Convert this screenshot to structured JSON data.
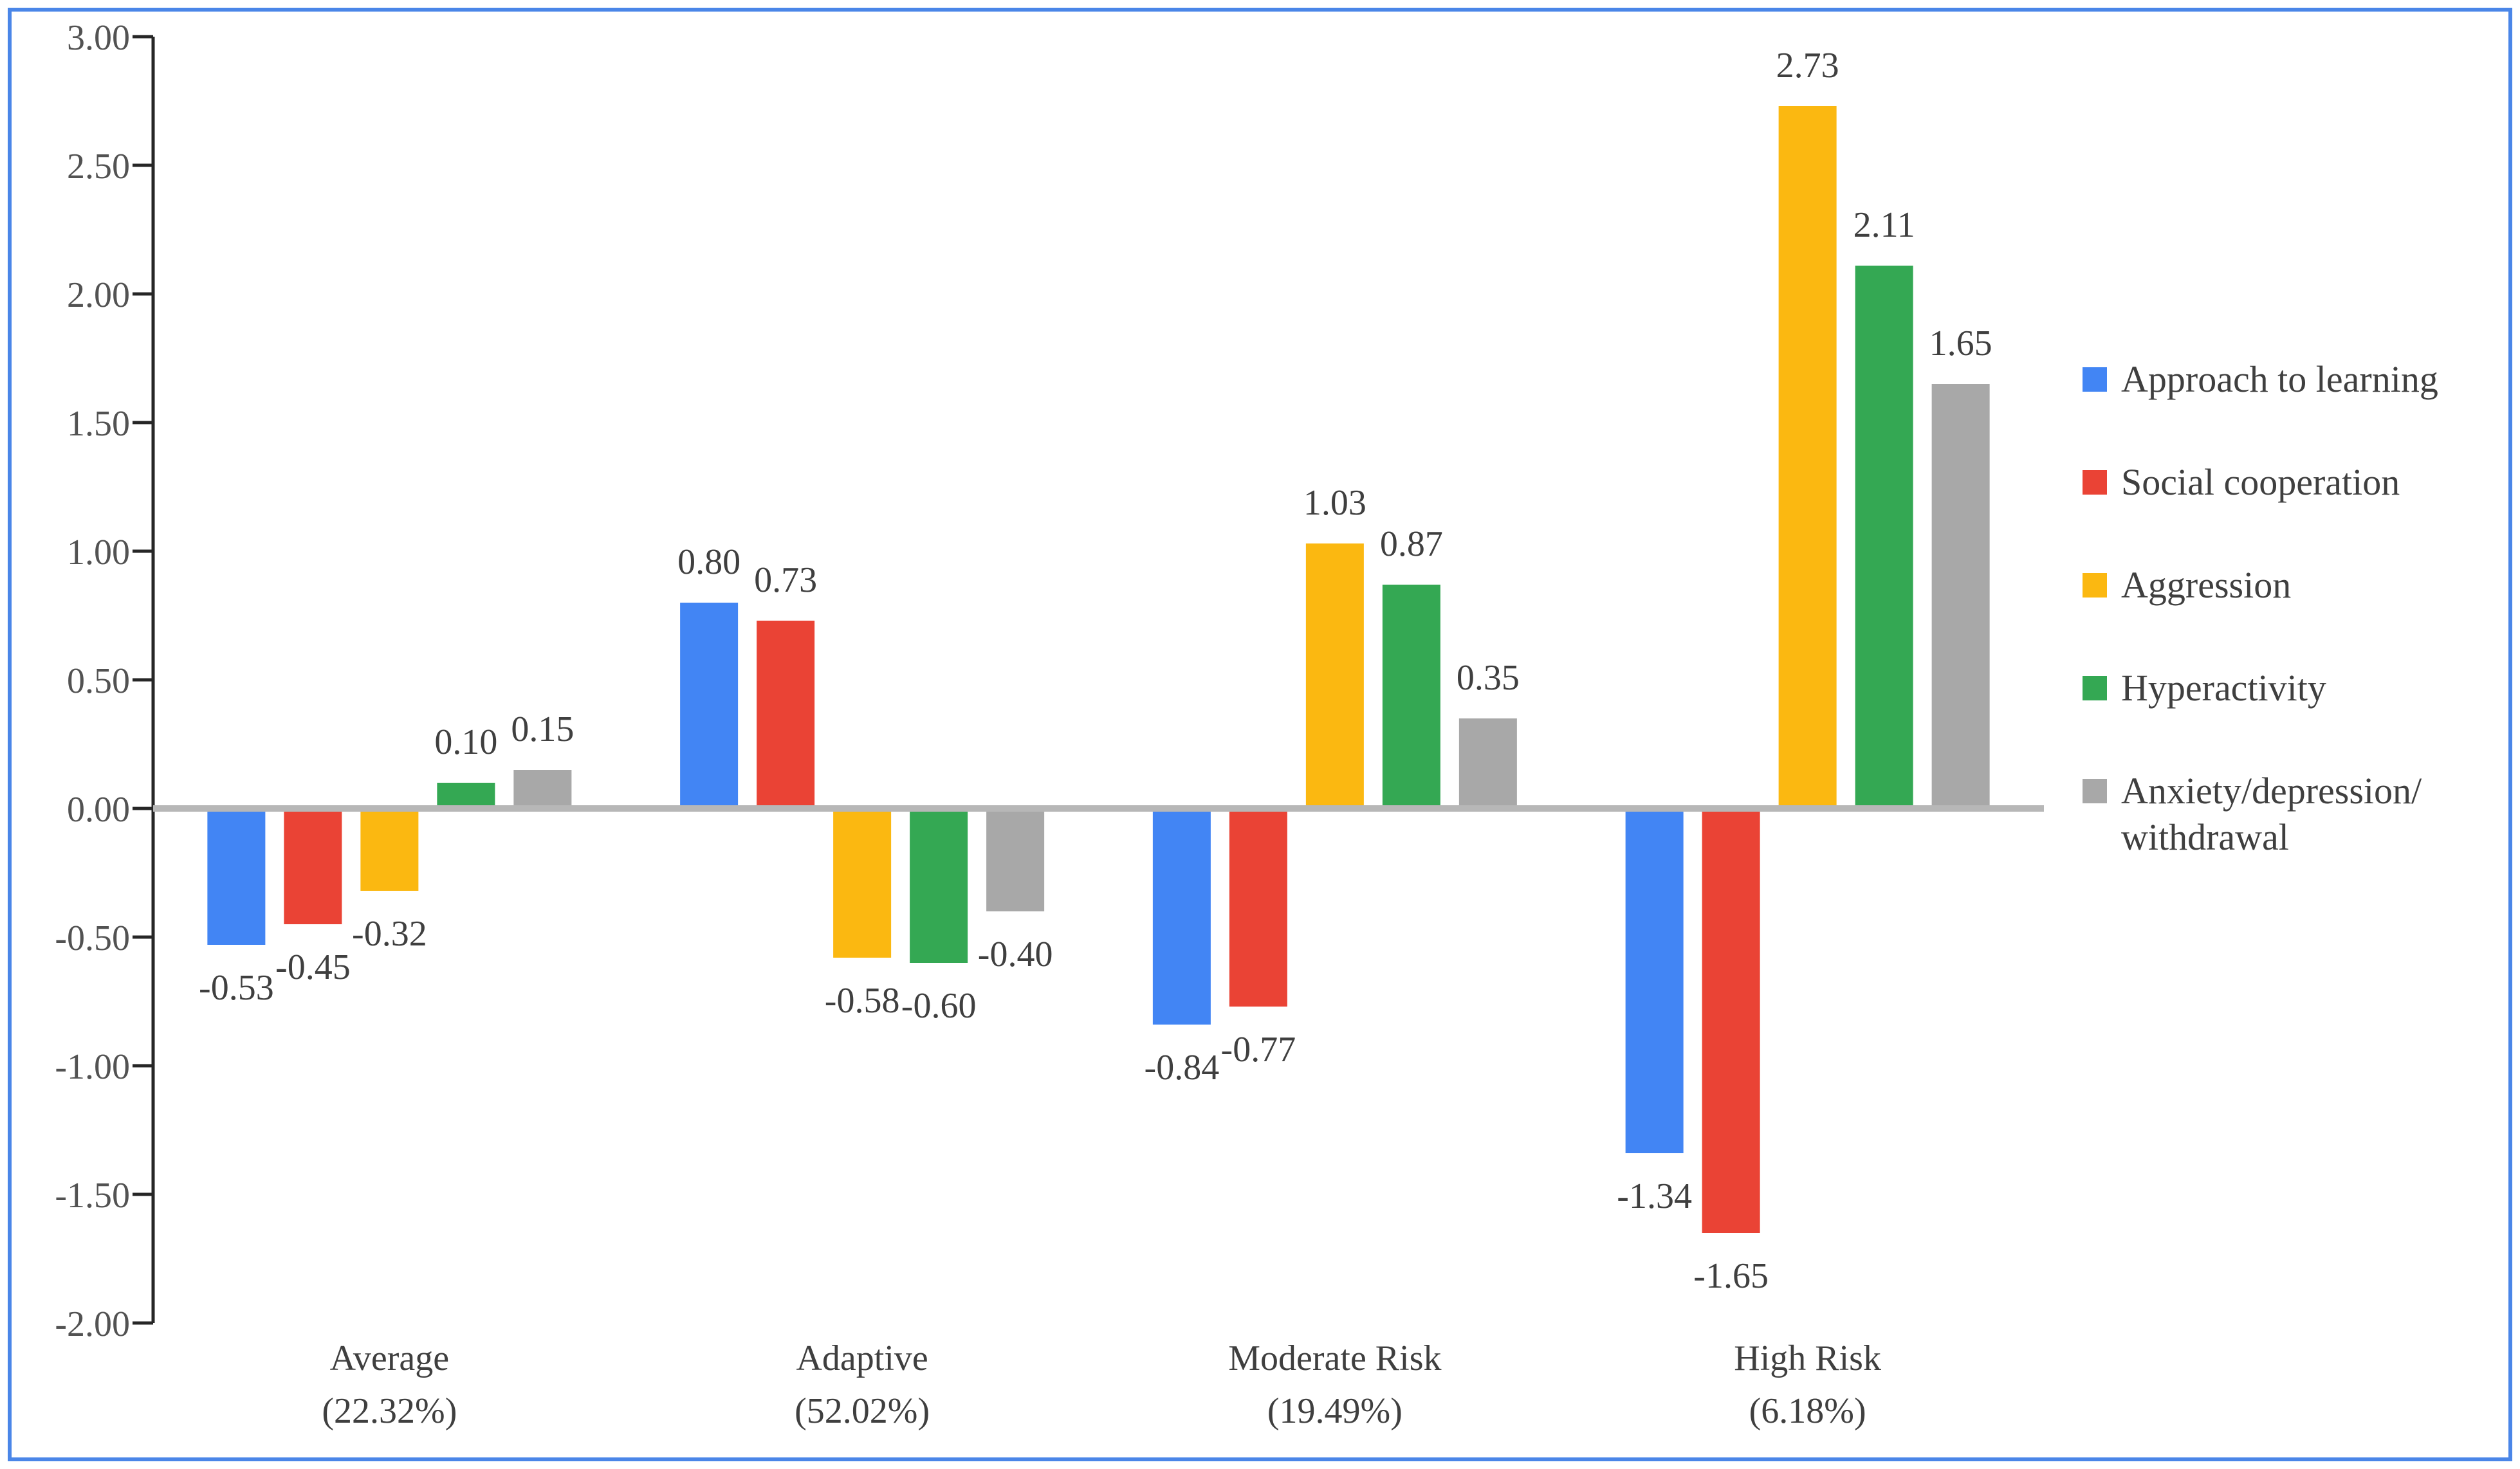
{
  "figure": {
    "background": "#FFFFFF",
    "border_color": "#4A86E8"
  },
  "chart_data": {
    "type": "bar",
    "title": "",
    "xlabel": "",
    "ylabel": "",
    "categories": [
      "Average",
      "Adaptive",
      "Moderate Risk",
      "High Risk"
    ],
    "category_percentages": [
      "(22.32%)",
      "(52.02%)",
      "(19.49%)",
      "(6.18%)"
    ],
    "series": [
      {
        "name": "Approach to learning",
        "color": "#4285F4",
        "values": [
          -0.53,
          0.8,
          -0.84,
          -1.34
        ]
      },
      {
        "name": "Social cooperation",
        "color": "#EA4335",
        "values": [
          -0.45,
          0.73,
          -0.77,
          -1.65
        ]
      },
      {
        "name": "Aggression",
        "color": "#FBB811",
        "values": [
          -0.32,
          -0.58,
          1.03,
          2.73
        ]
      },
      {
        "name": "Hyperactivity",
        "color": "#34A853",
        "values": [
          0.1,
          -0.6,
          0.87,
          2.11
        ]
      },
      {
        "name": "Anxiety/depression/withdrawal",
        "color": "#A8A8A8",
        "values": [
          0.15,
          -0.4,
          0.35,
          1.65
        ]
      }
    ],
    "ylim": [
      -2.0,
      3.0
    ],
    "ytick_step": 0.5,
    "yticks": [
      "3.00",
      "2.50",
      "2.00",
      "1.50",
      "1.00",
      "0.50",
      "0.00",
      "-0.50",
      "-1.00",
      "-1.50",
      "-2.00"
    ],
    "data_labels_visible": true,
    "data_label_decimals": 2,
    "grid": "zero-line-only",
    "legend_position": "right",
    "colors": {
      "axis": "#262626",
      "zero_line": "#B7B7B7",
      "tick_text": "#525252",
      "label_text": "#3F3F3F"
    }
  }
}
